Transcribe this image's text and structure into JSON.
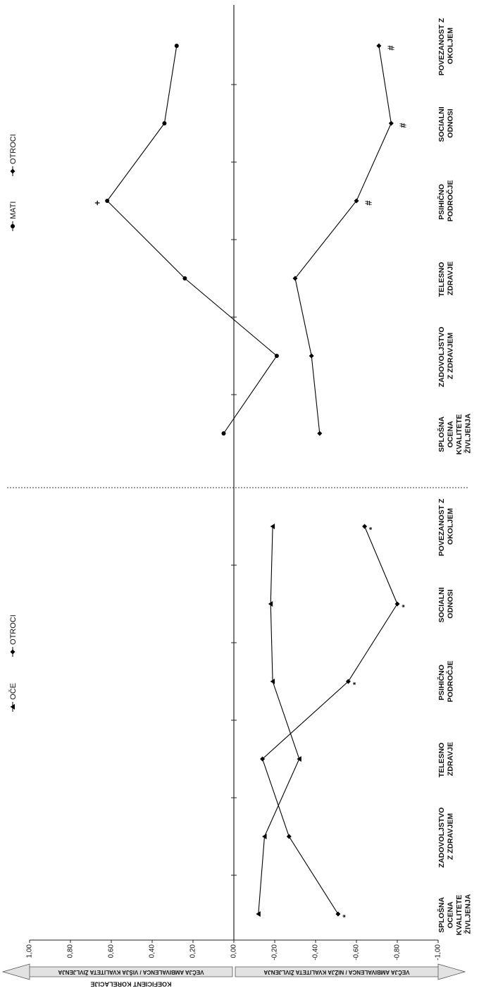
{
  "chart_data": [
    {
      "type": "line",
      "ylabel": "KOEFICIENT KORELACIJE",
      "arrow_labels": [
        "VEČJA AMBIVALENCA / VIŠJA KVALITETA ŽIVLJENJA",
        "VEČJA AMBIVALENCA / NIŽJA KVALITETA ŽIVLJENJA"
      ],
      "categories": [
        "SPLOŠNA OCENA KVALITETE ŽIVLJENJA",
        "ZADOVOLJSTVO Z ZDRAVJEM",
        "TELESNO ZDRAVJE",
        "PSIHIČNO PODROČJE",
        "SOCIALNI ODNOSI",
        "POVEZANOST Z OKOLJEM"
      ],
      "series": [
        {
          "name": "OČE",
          "color": "#000000",
          "marker": "triangle",
          "values": [
            -0.12,
            -0.15,
            -0.32,
            -0.19,
            -0.18,
            -0.19
          ]
        },
        {
          "name": "OTROCI",
          "color": "#000000",
          "marker": "diamond",
          "values": [
            -0.51,
            -0.27,
            -0.14,
            -0.56,
            -0.8,
            -0.64
          ],
          "flags": [
            "*",
            null,
            null,
            "*",
            "*",
            "*"
          ]
        }
      ],
      "ylim": [
        -1,
        1
      ],
      "yticks": [
        {
          "value": -1,
          "label": "-1,00"
        },
        {
          "value": -0.8,
          "label": "-0,80"
        },
        {
          "value": -0.6,
          "label": "-0,60"
        },
        {
          "value": -0.4,
          "label": "-0,40"
        },
        {
          "value": -0.2,
          "label": "-0,20"
        },
        {
          "value": 0,
          "label": "0,00"
        },
        {
          "value": 0.2,
          "label": "0,20"
        },
        {
          "value": 0.4,
          "label": "0,40"
        },
        {
          "value": 0.6,
          "label": "0,60"
        },
        {
          "value": 0.8,
          "label": "0,80"
        },
        {
          "value": 1,
          "label": "1,00"
        }
      ]
    },
    {
      "type": "line",
      "categories": [
        "SPLOŠNA OCENA KVALITETE ŽIVLJENJA",
        "ZADOVOLJSTVO Z ZDRAVJEM",
        "TELESNO ZDRAVJE",
        "PSIHIČNO PODROČJE",
        "SOCIALNI ODNOSI",
        "POVEZANOST Z OKOLJEM"
      ],
      "series": [
        {
          "name": "MATI",
          "color": "#000000",
          "marker": "circle",
          "values": [
            0.05,
            -0.21,
            0.24,
            0.62,
            0.34,
            0.28
          ],
          "flags": [
            null,
            null,
            null,
            "+",
            null,
            null
          ]
        },
        {
          "name": "OTROCI",
          "color": "#000000",
          "marker": "diamond",
          "values": [
            -0.42,
            -0.38,
            -0.3,
            -0.6,
            -0.77,
            -0.71
          ],
          "flags": [
            null,
            null,
            null,
            "#",
            "#",
            "#"
          ]
        }
      ],
      "ylim": [
        -1,
        1
      ]
    }
  ]
}
